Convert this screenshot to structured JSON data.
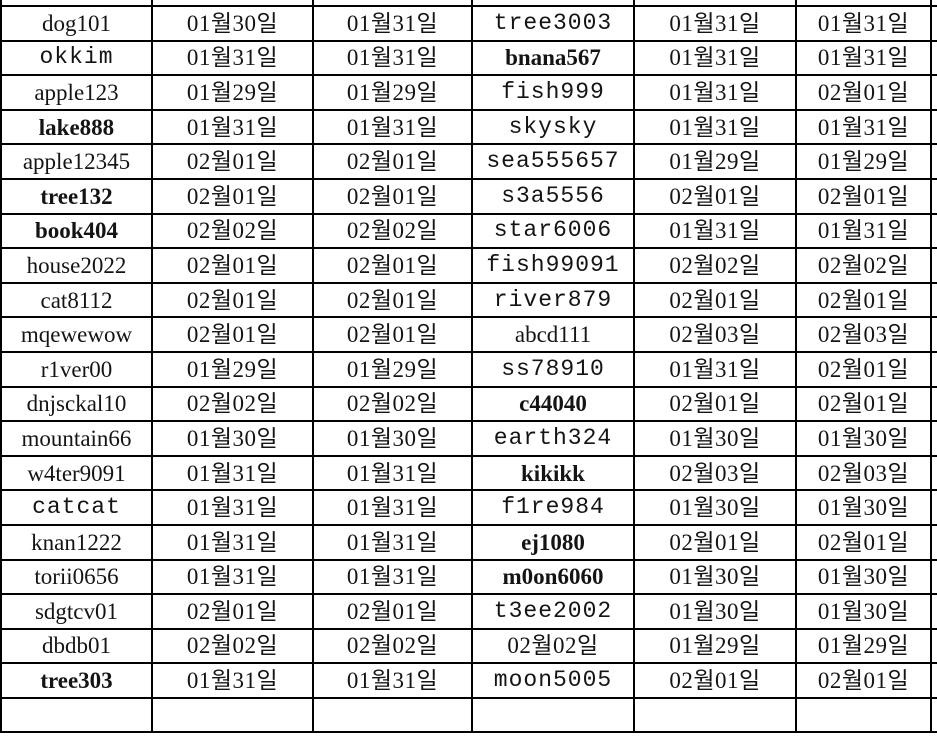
{
  "colors": {
    "background": "#ffffff",
    "text": "#141414",
    "muted_text": "#5a5a5a",
    "grid_border": "#000000"
  },
  "table": {
    "visible_columns": 6,
    "clipped_partial_rows": {
      "top": true,
      "bottom": true
    },
    "clipped_partial_column_right": true,
    "style_legend": {
      "serif": "thin serif (CJK-font latin)",
      "bold": "bold Times-like serif",
      "mono": "Courier-like monospace",
      "mono-gray": "Courier-like monospace, gray color",
      "date": "serif Korean date"
    },
    "rows": [
      [
        [
          "dog101",
          "serif"
        ],
        [
          "01월30일",
          "date"
        ],
        [
          "01월31일",
          "date"
        ],
        [
          "tree3003",
          "mono"
        ],
        [
          "01월31일",
          "date"
        ],
        [
          "01월31일",
          "date"
        ]
      ],
      [
        [
          "okkim",
          "mono-gray"
        ],
        [
          "01월31일",
          "date"
        ],
        [
          "01월31일",
          "date"
        ],
        [
          "bnana567",
          "bold"
        ],
        [
          "01월31일",
          "date"
        ],
        [
          "01월31일",
          "date"
        ]
      ],
      [
        [
          "apple123",
          "serif"
        ],
        [
          "01월29일",
          "date"
        ],
        [
          "01월29일",
          "date"
        ],
        [
          "fish999",
          "mono"
        ],
        [
          "01월31일",
          "date"
        ],
        [
          "02월01일",
          "date"
        ]
      ],
      [
        [
          "lake888",
          "bold"
        ],
        [
          "01월31일",
          "date"
        ],
        [
          "01월31일",
          "date"
        ],
        [
          "skysky",
          "mono"
        ],
        [
          "01월31일",
          "date"
        ],
        [
          "01월31일",
          "date"
        ]
      ],
      [
        [
          "apple12345",
          "serif"
        ],
        [
          "02월01일",
          "date"
        ],
        [
          "02월01일",
          "date"
        ],
        [
          "sea555657",
          "mono"
        ],
        [
          "01월29일",
          "date"
        ],
        [
          "01월29일",
          "date"
        ]
      ],
      [
        [
          "tree132",
          "bold"
        ],
        [
          "02월01일",
          "date"
        ],
        [
          "02월01일",
          "date"
        ],
        [
          "s3a5556",
          "mono"
        ],
        [
          "02월01일",
          "date"
        ],
        [
          "02월01일",
          "date"
        ]
      ],
      [
        [
          "book404",
          "bold"
        ],
        [
          "02월02일",
          "date"
        ],
        [
          "02월02일",
          "date"
        ],
        [
          "star6006",
          "mono"
        ],
        [
          "01월31일",
          "date"
        ],
        [
          "01월31일",
          "date"
        ]
      ],
      [
        [
          "house2022",
          "serif"
        ],
        [
          "02월01일",
          "date"
        ],
        [
          "02월01일",
          "date"
        ],
        [
          "fish99091",
          "mono"
        ],
        [
          "02월02일",
          "date"
        ],
        [
          "02월02일",
          "date"
        ]
      ],
      [
        [
          "cat8112",
          "serif"
        ],
        [
          "02월01일",
          "date"
        ],
        [
          "02월01일",
          "date"
        ],
        [
          "river879",
          "mono"
        ],
        [
          "02월01일",
          "date"
        ],
        [
          "02월01일",
          "date"
        ]
      ],
      [
        [
          "mqewewow",
          "serif"
        ],
        [
          "02월01일",
          "date"
        ],
        [
          "02월01일",
          "date"
        ],
        [
          "abcd111",
          "serif"
        ],
        [
          "02월03일",
          "date"
        ],
        [
          "02월03일",
          "date"
        ]
      ],
      [
        [
          "r1ver00",
          "serif"
        ],
        [
          "01월29일",
          "date"
        ],
        [
          "01월29일",
          "date"
        ],
        [
          "ss78910",
          "mono-gray"
        ],
        [
          "01월31일",
          "date"
        ],
        [
          "02월01일",
          "date"
        ]
      ],
      [
        [
          "dnjsckal10",
          "serif"
        ],
        [
          "02월02일",
          "date"
        ],
        [
          "02월02일",
          "date"
        ],
        [
          "c44040",
          "bold"
        ],
        [
          "02월01일",
          "date"
        ],
        [
          "02월01일",
          "date"
        ]
      ],
      [
        [
          "mountain66",
          "serif"
        ],
        [
          "01월30일",
          "date"
        ],
        [
          "01월30일",
          "date"
        ],
        [
          "earth324",
          "mono"
        ],
        [
          "01월30일",
          "date"
        ],
        [
          "01월30일",
          "date"
        ]
      ],
      [
        [
          "w4ter9091",
          "serif"
        ],
        [
          "01월31일",
          "date"
        ],
        [
          "01월31일",
          "date"
        ],
        [
          "kikikk",
          "bold"
        ],
        [
          "02월03일",
          "date"
        ],
        [
          "02월03일",
          "date"
        ]
      ],
      [
        [
          "catcat",
          "mono-gray"
        ],
        [
          "01월31일",
          "date"
        ],
        [
          "01월31일",
          "date"
        ],
        [
          "f1re984",
          "mono"
        ],
        [
          "01월30일",
          "date"
        ],
        [
          "01월30일",
          "date"
        ]
      ],
      [
        [
          "knan1222",
          "serif"
        ],
        [
          "01월31일",
          "date"
        ],
        [
          "01월31일",
          "date"
        ],
        [
          "ej1080",
          "bold"
        ],
        [
          "02월01일",
          "date"
        ],
        [
          "02월01일",
          "date"
        ]
      ],
      [
        [
          "torii0656",
          "serif"
        ],
        [
          "01월31일",
          "date"
        ],
        [
          "01월31일",
          "date"
        ],
        [
          "m0on6060",
          "bold"
        ],
        [
          "01월30일",
          "date"
        ],
        [
          "01월30일",
          "date"
        ]
      ],
      [
        [
          "sdgtcv01",
          "serif"
        ],
        [
          "02월01일",
          "date"
        ],
        [
          "02월01일",
          "date"
        ],
        [
          "t3ee2002",
          "mono-gray"
        ],
        [
          "01월30일",
          "date"
        ],
        [
          "01월30일",
          "date"
        ]
      ],
      [
        [
          "dbdb01",
          "serif"
        ],
        [
          "02월02일",
          "date"
        ],
        [
          "02월02일",
          "date"
        ],
        [
          "02월02일",
          "date"
        ],
        [
          "01월29일",
          "date"
        ],
        [
          "01월29일",
          "date"
        ]
      ],
      [
        [
          "tree303",
          "bold"
        ],
        [
          "01월31일",
          "date"
        ],
        [
          "01월31일",
          "date"
        ],
        [
          "moon5005",
          "mono"
        ],
        [
          "02월01일",
          "date"
        ],
        [
          "02월01일",
          "date"
        ]
      ]
    ]
  }
}
